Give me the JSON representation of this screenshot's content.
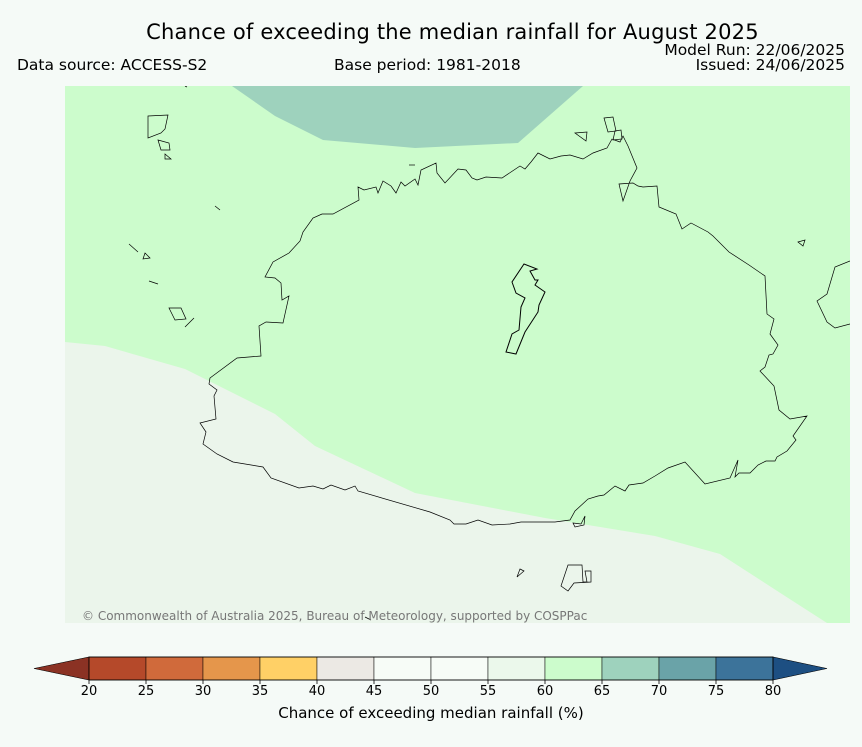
{
  "header": {
    "title": "Chance of exceeding the median rainfall for August 2025",
    "data_source": "Data source: ACCESS-S2",
    "base_period": "Base period: 1981-2018",
    "model_run": "Model Run: 22/06/2025",
    "issued": "Issued: 24/06/2025"
  },
  "map": {
    "credit": "© Commonwealth of Australia 2025, Bureau of Meteorology, supported by COSPPac",
    "zones": [
      {
        "name": "zone-65-70",
        "color": "#9ed2bd"
      },
      {
        "name": "zone-60-65",
        "color": "#ccfccc"
      },
      {
        "name": "zone-55-60",
        "color": "#ebf5eb"
      }
    ],
    "coastline_color": "#000000"
  },
  "colorbar": {
    "title": "Chance of exceeding median rainfall (%)",
    "ticks": [
      "20",
      "25",
      "30",
      "35",
      "40",
      "45",
      "50",
      "55",
      "60",
      "65",
      "70",
      "75",
      "80"
    ],
    "low_extend_color": "#8b3224",
    "high_extend_color": "#1d4f82",
    "bins": [
      {
        "from": 20,
        "to": 25,
        "color": "#b5492a"
      },
      {
        "from": 25,
        "to": 30,
        "color": "#d06a3b"
      },
      {
        "from": 30,
        "to": 35,
        "color": "#e5964b"
      },
      {
        "from": 35,
        "to": 40,
        "color": "#ffd066"
      },
      {
        "from": 40,
        "to": 45,
        "color": "#ece9e4"
      },
      {
        "from": 45,
        "to": 50,
        "color": "#f7fcf7"
      },
      {
        "from": 50,
        "to": 55,
        "color": "#f7fcf7"
      },
      {
        "from": 55,
        "to": 60,
        "color": "#ebf8eb"
      },
      {
        "from": 60,
        "to": 65,
        "color": "#ccfccc"
      },
      {
        "from": 65,
        "to": 70,
        "color": "#9ed2bd"
      },
      {
        "from": 70,
        "to": 75,
        "color": "#6aa3a8"
      },
      {
        "from": 75,
        "to": 80,
        "color": "#3c739a"
      }
    ]
  }
}
